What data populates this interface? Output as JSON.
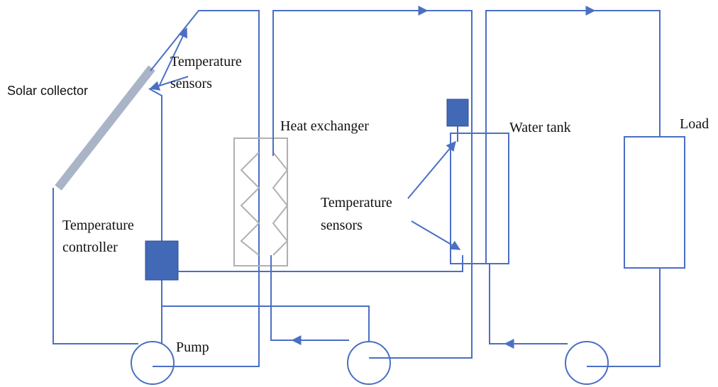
{
  "labels": {
    "solar_collector": "Solar collector",
    "top_sensors": [
      "Temperature",
      "sensors"
    ],
    "heat_exchanger": "Heat exchanger",
    "water_tank": "Water tank",
    "load": "Load",
    "controller": [
      "Temperature",
      "controller"
    ],
    "tank_sensors": [
      "Temperature",
      "sensors"
    ],
    "pump": "Pump"
  }
}
